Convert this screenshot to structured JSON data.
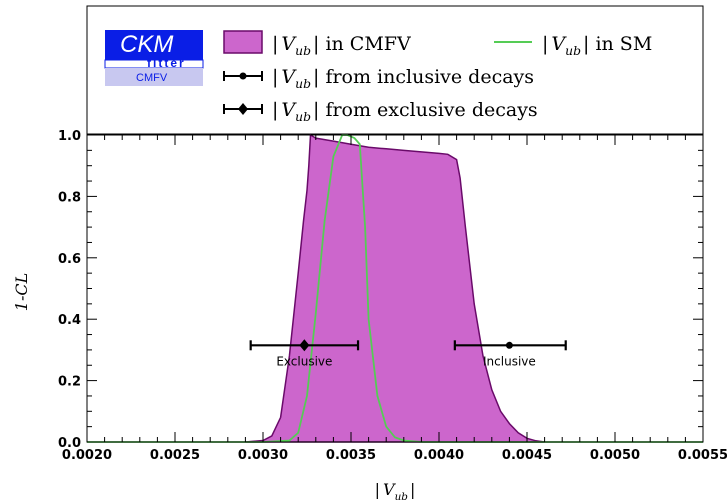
{
  "logo": {
    "line1": "CKM",
    "line2": "fitter",
    "line3": "CMFV",
    "color": "#0a1ee6",
    "sub_color": "#c8c8f0"
  },
  "legend": {
    "cmfv_label": "|V_ub| in CMFV",
    "sm_label": "|V_ub| in SM",
    "inclusive_label": "|V_ub| from inclusive decays",
    "exclusive_label": "|V_ub| from exclusive decays"
  },
  "chart_data": {
    "type": "area",
    "xlabel": "|V_ub|",
    "ylabel": "1-CL",
    "xlim": [
      0.002,
      0.0055
    ],
    "ylim": [
      0,
      1.0
    ],
    "x_ticks": [
      "0.0020",
      "0.0025",
      "0.0030",
      "0.0035",
      "0.0040",
      "0.0045",
      "0.0050",
      "0.0055"
    ],
    "y_ticks": [
      "0.0",
      "0.2",
      "0.4",
      "0.6",
      "0.8",
      "1.0"
    ],
    "grid": false,
    "series": [
      {
        "name": "|V_ub| in CMFV",
        "kind": "area",
        "color": "#cc66cc",
        "edge_color": "#6a0a6a",
        "x": [
          0.0029,
          0.003,
          0.00305,
          0.0031,
          0.00315,
          0.0032,
          0.00323,
          0.00325,
          0.00326,
          0.00327,
          0.0033,
          0.0034,
          0.0035,
          0.0036,
          0.0037,
          0.0038,
          0.0039,
          0.004,
          0.00405,
          0.0041,
          0.00412,
          0.00415,
          0.0042,
          0.00425,
          0.0043,
          0.00435,
          0.0044,
          0.00445,
          0.0045,
          0.00455,
          0.0046
        ],
        "y": [
          0.0,
          0.005,
          0.02,
          0.08,
          0.28,
          0.55,
          0.72,
          0.82,
          0.9,
          1.0,
          0.99,
          0.98,
          0.97,
          0.96,
          0.955,
          0.95,
          0.945,
          0.94,
          0.937,
          0.92,
          0.86,
          0.7,
          0.45,
          0.28,
          0.17,
          0.1,
          0.06,
          0.03,
          0.012,
          0.004,
          0.0
        ]
      },
      {
        "name": "|V_ub| in SM",
        "kind": "line",
        "color": "#55cc55",
        "x": [
          0.002,
          0.003,
          0.00315,
          0.0032,
          0.00325,
          0.0033,
          0.00335,
          0.0034,
          0.00345,
          0.00348,
          0.00352,
          0.00355,
          0.00358,
          0.0036,
          0.00365,
          0.0037,
          0.00375,
          0.0038,
          0.0039,
          0.0055
        ],
        "y": [
          0.0,
          0.0,
          0.005,
          0.03,
          0.15,
          0.42,
          0.72,
          0.93,
          1.0,
          1.0,
          0.99,
          0.97,
          0.7,
          0.4,
          0.15,
          0.05,
          0.015,
          0.005,
          0.0,
          0.0
        ]
      }
    ],
    "error_bars": [
      {
        "name": "Exclusive",
        "center": 0.003235,
        "low": 0.00293,
        "high": 0.00354,
        "y": 0.315,
        "marker": "diamond"
      },
      {
        "name": "Inclusive",
        "center": 0.0044,
        "low": 0.00409,
        "high": 0.00472,
        "y": 0.315,
        "marker": "circle"
      }
    ]
  }
}
